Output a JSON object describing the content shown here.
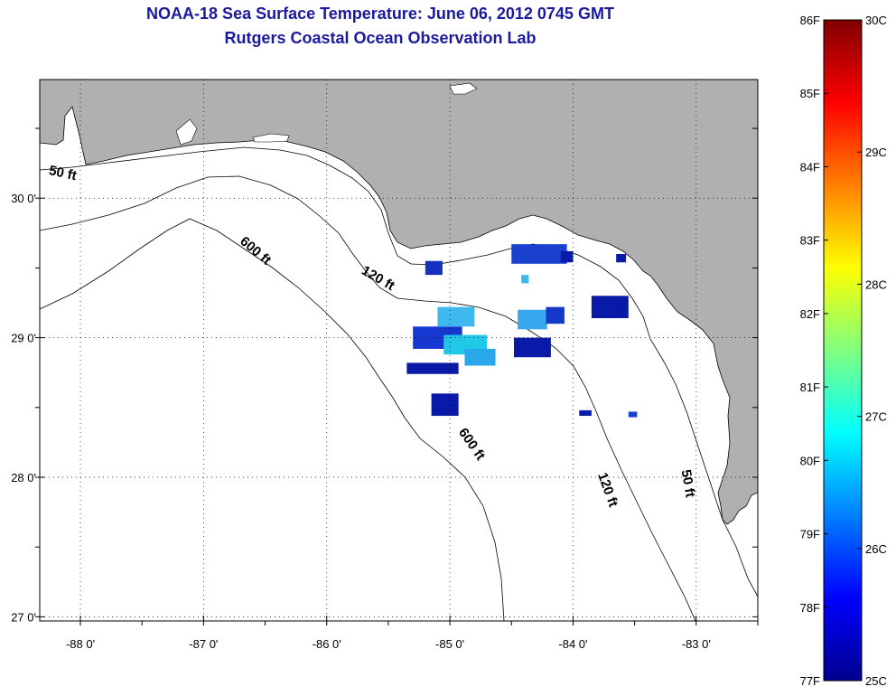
{
  "title": {
    "line1": "NOAA-18 Sea Surface Temperature:  June 06, 2012 0745 GMT",
    "line2": "Rutgers Coastal Ocean Observation Lab"
  },
  "map": {
    "lon_range": [
      -88.33,
      -82.5
    ],
    "lat_range": [
      26.97,
      30.85
    ],
    "lon_ticks": [
      {
        "value": -88,
        "label": "-88 0'"
      },
      {
        "value": -87,
        "label": "-87 0'"
      },
      {
        "value": -86,
        "label": "-86 0'"
      },
      {
        "value": -85,
        "label": "-85 0'"
      },
      {
        "value": -84,
        "label": "-84 0'"
      },
      {
        "value": -83,
        "label": "-83 0'"
      }
    ],
    "lat_ticks": [
      {
        "value": 30,
        "label": "30 0'"
      },
      {
        "value": 29,
        "label": "29 0'"
      },
      {
        "value": 28,
        "label": "28 0'"
      },
      {
        "value": 27,
        "label": "27 0'"
      }
    ],
    "land_color": "#b0b0b0",
    "water_color": "#ffffff",
    "grid": "dotted"
  },
  "contour_labels": [
    {
      "text": "50 ft",
      "lon": -88.15,
      "lat": 30.15,
      "angle": 12
    },
    {
      "text": "600 ft",
      "lon": -86.6,
      "lat": 29.6,
      "angle": 40
    },
    {
      "text": "120 ft",
      "lon": -85.6,
      "lat": 29.4,
      "angle": 30
    },
    {
      "text": "600 ft",
      "lon": -84.85,
      "lat": 28.22,
      "angle": 55
    },
    {
      "text": "120 ft",
      "lon": -83.75,
      "lat": 27.9,
      "angle": 70
    },
    {
      "text": "50 ft",
      "lon": -83.1,
      "lat": 27.95,
      "angle": 80
    }
  ],
  "sst_patches": [
    {
      "lon": -85.3,
      "lat": 29.08,
      "w": 0.4,
      "h": 0.16,
      "color": "#1638d0"
    },
    {
      "lon": -85.1,
      "lat": 29.22,
      "w": 0.3,
      "h": 0.14,
      "color": "#3fb8ee"
    },
    {
      "lon": -85.05,
      "lat": 29.02,
      "w": 0.35,
      "h": 0.14,
      "color": "#20c8e8"
    },
    {
      "lon": -84.88,
      "lat": 28.92,
      "w": 0.25,
      "h": 0.12,
      "color": "#28a8ea"
    },
    {
      "lon": -85.35,
      "lat": 28.82,
      "w": 0.42,
      "h": 0.08,
      "color": "#0a1aa8"
    },
    {
      "lon": -85.15,
      "lat": 28.6,
      "w": 0.22,
      "h": 0.16,
      "color": "#0a1aa8"
    },
    {
      "lon": -85.2,
      "lat": 29.55,
      "w": 0.14,
      "h": 0.1,
      "color": "#1630c0"
    },
    {
      "lon": -84.5,
      "lat": 29.67,
      "w": 0.45,
      "h": 0.14,
      "color": "#1a40d0"
    },
    {
      "lon": -84.1,
      "lat": 29.62,
      "w": 0.1,
      "h": 0.08,
      "color": "#0a1aa8"
    },
    {
      "lon": -84.45,
      "lat": 29.2,
      "w": 0.24,
      "h": 0.14,
      "color": "#38a8ee"
    },
    {
      "lon": -84.48,
      "lat": 29.0,
      "w": 0.3,
      "h": 0.14,
      "color": "#0a1aa8"
    },
    {
      "lon": -84.22,
      "lat": 29.22,
      "w": 0.15,
      "h": 0.12,
      "color": "#1438c8"
    },
    {
      "lon": -83.85,
      "lat": 29.3,
      "w": 0.3,
      "h": 0.16,
      "color": "#0a1aa8"
    },
    {
      "lon": -84.42,
      "lat": 29.45,
      "w": 0.06,
      "h": 0.06,
      "color": "#3fb8ee"
    },
    {
      "lon": -83.65,
      "lat": 29.6,
      "w": 0.08,
      "h": 0.06,
      "color": "#0a1aa8"
    },
    {
      "lon": -83.95,
      "lat": 28.48,
      "w": 0.1,
      "h": 0.04,
      "color": "#0a1aa8"
    },
    {
      "lon": -83.55,
      "lat": 28.47,
      "w": 0.07,
      "h": 0.04,
      "color": "#1a40d0"
    }
  ],
  "colorbar": {
    "min_f": 77,
    "max_f": 86,
    "left_labels": [
      "86F",
      "85F",
      "84F",
      "83F",
      "82F",
      "81F",
      "80F",
      "79F",
      "78F",
      "77F"
    ],
    "right_labels": [
      "30C",
      "29C",
      "28C",
      "27C",
      "26C",
      "25C"
    ],
    "right_values_c": [
      30,
      29,
      28,
      27,
      26,
      25
    ],
    "colormap": "jet"
  }
}
